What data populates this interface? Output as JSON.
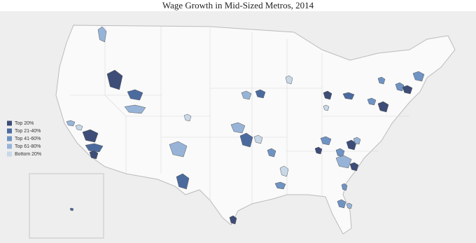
{
  "title": "Wage Growth in Mid-Sized Metros, 2014",
  "legend": [
    {
      "label": "Top 20%",
      "color": "#3d4d78"
    },
    {
      "label": "Top 21-40%",
      "color": "#4b6b9f"
    },
    {
      "label": "Top 41-60%",
      "color": "#6f93c3"
    },
    {
      "label": "Top 61-80%",
      "color": "#97b4d8"
    },
    {
      "label": "Bottom 20%",
      "color": "#c8d8e8"
    }
  ]
}
